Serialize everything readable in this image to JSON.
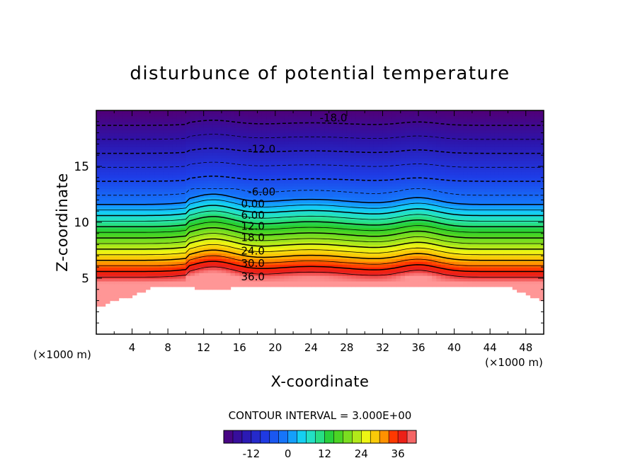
{
  "chart_data": {
    "type": "heatmap",
    "title": "disturbunce of potential temperature",
    "xlabel": "X-coordinate",
    "ylabel": "Z-coordinate",
    "x_unit_left": "(×1000 m)",
    "x_unit_right": "(×1000 m)",
    "xlim": [
      0,
      50
    ],
    "ylim": [
      0,
      20
    ],
    "x_ticks": [
      "4",
      "8",
      "12",
      "16",
      "20",
      "24",
      "28",
      "32",
      "36",
      "40",
      "44",
      "48"
    ],
    "y_ticks": [
      "5",
      "10",
      "15"
    ],
    "contour_interval_text": "CONTOUR INTERVAL = 3.000E+00",
    "contour_labels": [
      {
        "text": "-18.0",
        "x": 26.5,
        "z": 19.4
      },
      {
        "text": "-12.0",
        "x": 18.5,
        "z": 16.6
      },
      {
        "text": "-6.00",
        "x": 18.5,
        "z": 12.8
      },
      {
        "text": "0.00",
        "x": 17.5,
        "z": 11.7
      },
      {
        "text": "6.00",
        "x": 17.5,
        "z": 10.7
      },
      {
        "text": "12.0",
        "x": 17.5,
        "z": 9.7
      },
      {
        "text": "18.0",
        "x": 17.5,
        "z": 8.7
      },
      {
        "text": "24.0",
        "x": 17.5,
        "z": 7.5
      },
      {
        "text": "30.0",
        "x": 17.5,
        "z": 6.4
      },
      {
        "text": "36.0",
        "x": 17.5,
        "z": 5.2
      }
    ],
    "value_range": [
      -21,
      42
    ],
    "colorbar": {
      "ticks": [
        "-12",
        "0",
        "12",
        "24",
        "36"
      ],
      "tick_values": [
        -12,
        0,
        12,
        24,
        36
      ]
    },
    "grid": false,
    "legend": "bottom colorbar"
  }
}
